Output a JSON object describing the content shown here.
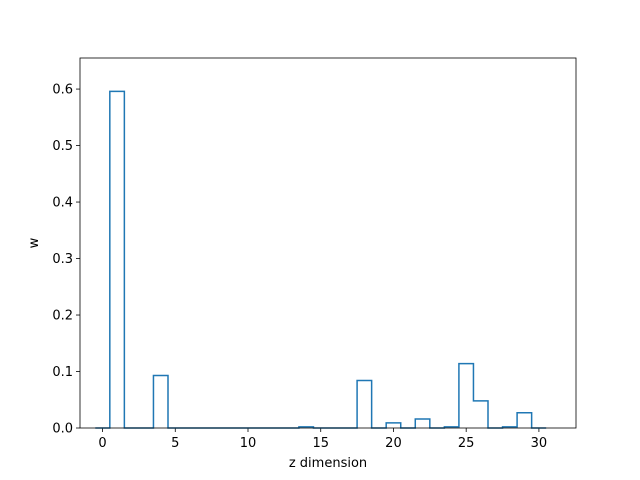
{
  "chart_data": {
    "type": "bar",
    "style": "step-histogram",
    "xlabel": "z dimension",
    "ylabel": "w",
    "xlim": [
      -1.55,
      32.55
    ],
    "ylim": [
      0,
      0.655
    ],
    "xticks": [
      0,
      5,
      10,
      15,
      20,
      25,
      30
    ],
    "yticks": [
      0.0,
      0.1,
      0.2,
      0.3,
      0.4,
      0.5,
      0.6
    ],
    "xtick_labels": [
      "0",
      "5",
      "10",
      "15",
      "20",
      "25",
      "30"
    ],
    "ytick_labels": [
      "0.0",
      "0.1",
      "0.2",
      "0.3",
      "0.4",
      "0.5",
      "0.6"
    ],
    "grid": false,
    "x": [
      0,
      1,
      2,
      3,
      4,
      5,
      6,
      7,
      8,
      9,
      10,
      11,
      12,
      13,
      14,
      15,
      16,
      17,
      18,
      19,
      20,
      21,
      22,
      23,
      24,
      25,
      26,
      27,
      28,
      29,
      30
    ],
    "values": [
      0.0,
      0.596,
      0.0,
      0.0,
      0.093,
      0.0,
      0.0,
      0.0,
      0.0,
      0.0,
      0.0,
      0.0,
      0.0,
      0.0,
      0.002,
      0.0,
      0.0,
      0.0,
      0.084,
      0.0,
      0.009,
      0.0,
      0.016,
      0.0,
      0.002,
      0.114,
      0.048,
      0.0,
      0.002,
      0.027,
      0.0
    ],
    "line_color": "#1f77b4"
  }
}
